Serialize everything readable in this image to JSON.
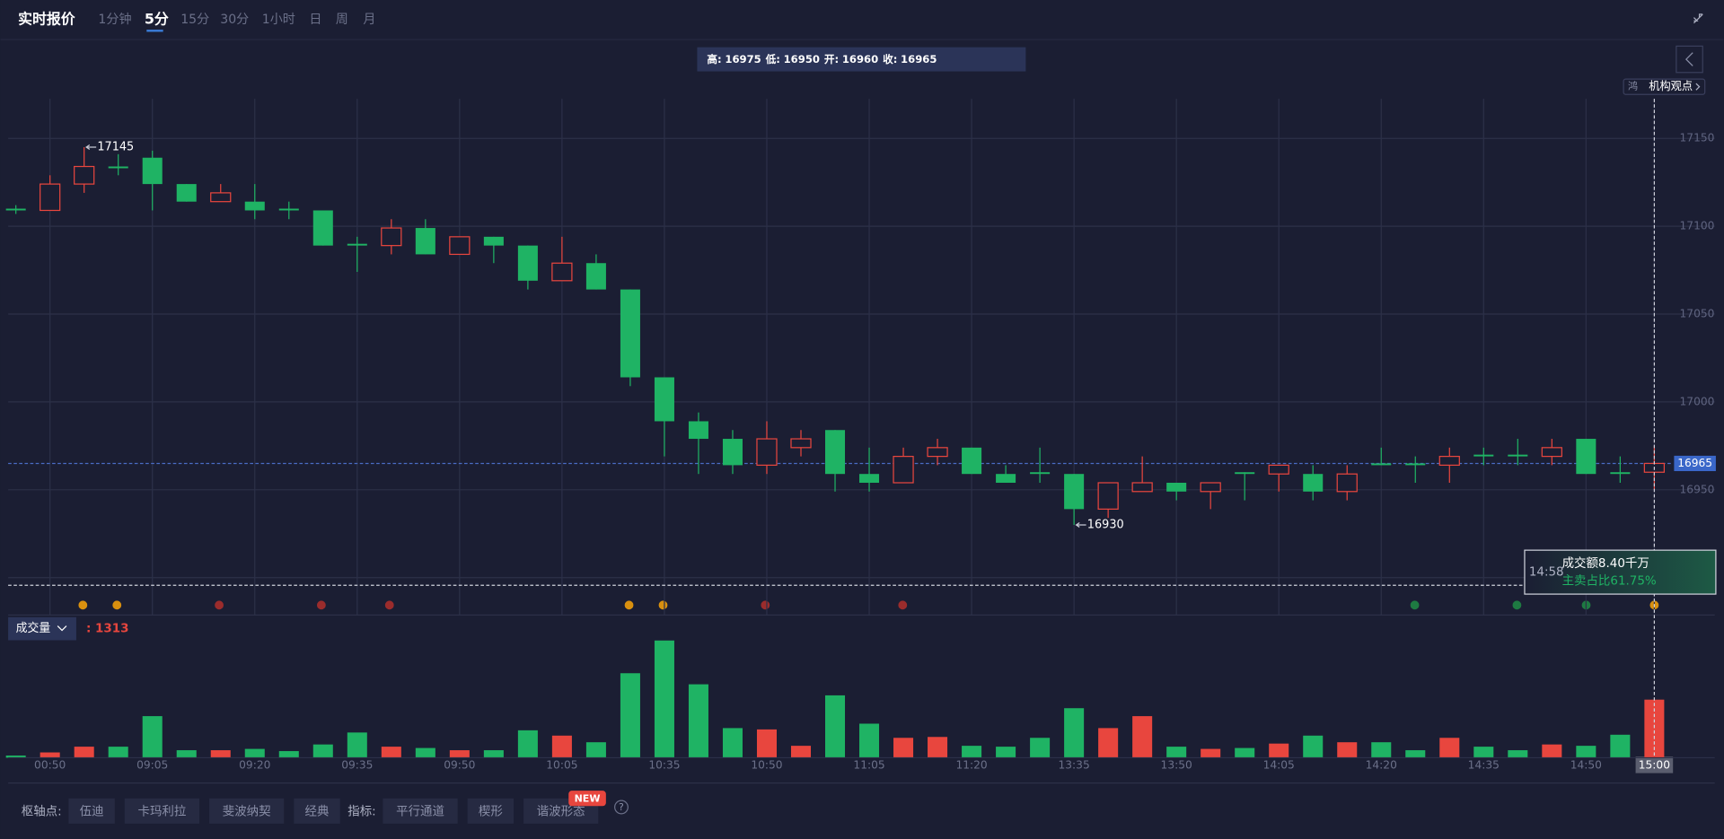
{
  "toolbar": {
    "title": "实时报价",
    "tabs": [
      "1分钟",
      "5分",
      "15分",
      "30分",
      "1小时",
      "日",
      "周",
      "月"
    ],
    "active_tab": 1
  },
  "ohlc_header": {
    "labels": [
      "高:",
      "低:",
      "开:",
      "收:"
    ]
  },
  "badge": {
    "icon": "鸿",
    "label": "机构观点"
  },
  "tooltip": {
    "time": "14:58",
    "amount": "成交额8.40千万",
    "ratio": "主卖占比61.75%"
  },
  "footer": {
    "pivot_label": "枢轴点:",
    "pivots": [
      "伍迪",
      "卡玛利拉",
      "斐波纳契",
      "经典"
    ],
    "indicator_label": "指标:",
    "indicators": [
      "平行通道",
      "楔形",
      "谐波形态"
    ],
    "new_badge": "NEW",
    "help": "?"
  },
  "chart_data": [
    {
      "type": "candlestick",
      "categories": [
        null,
        "00:50",
        null,
        null,
        "09:05",
        null,
        null,
        "09:20",
        null,
        null,
        "09:35",
        null,
        null,
        "09:50",
        null,
        null,
        "10:05",
        null,
        null,
        "10:35",
        null,
        null,
        "10:50",
        null,
        null,
        "11:05",
        null,
        null,
        "11:20",
        null,
        null,
        "13:35",
        null,
        null,
        "13:50",
        null,
        null,
        "14:05",
        null,
        null,
        "14:20",
        null,
        null,
        "14:35",
        null,
        null,
        "14:50",
        null,
        "15:00"
      ],
      "series": [
        {
          "name": "open",
          "values": [
            17110,
            17109,
            17124,
            17134,
            17139,
            17124,
            17114,
            17114,
            17110,
            17109,
            17090,
            17089,
            17099,
            17084,
            17094,
            17089,
            17069,
            17079,
            17064,
            17014,
            16989,
            16979,
            16964,
            16974,
            16984,
            16959,
            16954,
            16969,
            16974,
            16959,
            16960,
            16959,
            16939,
            16949,
            16954,
            16949,
            16960,
            16959,
            16959,
            16949,
            16965,
            16965,
            16964,
            16970,
            16970,
            16969,
            16979,
            16960,
            16960
          ]
        },
        {
          "name": "high",
          "values": [
            17112,
            17129,
            17145,
            17141,
            17143,
            17124,
            17124,
            17124,
            17114,
            17109,
            17094,
            17104,
            17104,
            17094,
            17094,
            17089,
            17094,
            17084,
            17064,
            17014,
            16994,
            16984,
            16989,
            16984,
            16984,
            16974,
            16974,
            16979,
            16974,
            16964,
            16974,
            16959,
            16954,
            16969,
            16954,
            16954,
            16960,
            16964,
            16964,
            16964,
            16974,
            16969,
            16974,
            16974,
            16979,
            16979,
            16979,
            16969,
            16975
          ]
        },
        {
          "name": "low",
          "values": [
            17107,
            17109,
            17119,
            17129,
            17109,
            17114,
            17114,
            17104,
            17104,
            17089,
            17074,
            17084,
            17084,
            17084,
            17079,
            17064,
            17069,
            17064,
            17009,
            16969,
            16959,
            16959,
            16959,
            16969,
            16949,
            16949,
            16954,
            16964,
            16959,
            16954,
            16954,
            16930,
            16934,
            16949,
            16944,
            16939,
            16944,
            16949,
            16944,
            16944,
            16964,
            16954,
            16954,
            16964,
            16964,
            16964,
            16959,
            16954,
            16950
          ]
        },
        {
          "name": "close",
          "values": [
            17109,
            17124,
            17134,
            17133,
            17124,
            17114,
            17119,
            17109,
            17109,
            17089,
            17089,
            17099,
            17084,
            17094,
            17089,
            17069,
            17079,
            17064,
            17014,
            16989,
            16979,
            16964,
            16979,
            16979,
            16959,
            16954,
            16969,
            16974,
            16959,
            16954,
            16959,
            16939,
            16954,
            16954,
            16949,
            16954,
            16959,
            16964,
            16949,
            16959,
            16964,
            16964,
            16969,
            16969,
            16969,
            16974,
            16959,
            16959,
            16965
          ]
        }
      ],
      "up_color": "#e8463e",
      "down_color": "#1fb364",
      "ylim": [
        16897.5,
        17172.5
      ],
      "yticks": [
        16900,
        16950,
        17000,
        17050,
        17100,
        17150
      ],
      "grid": true
    },
    {
      "type": "bar",
      "title": "成交量",
      "readout": ": 1313",
      "values": [
        50,
        120,
        250,
        250,
        940,
        170,
        170,
        200,
        150,
        300,
        570,
        250,
        220,
        170,
        170,
        620,
        500,
        350,
        1910,
        2650,
        1660,
        670,
        640,
        270,
        1410,
        770,
        450,
        470,
        270,
        250,
        450,
        1120,
        670,
        940,
        250,
        200,
        220,
        320,
        500,
        350,
        350,
        170,
        450,
        250,
        170,
        300,
        270,
        520,
        1313
      ],
      "ylim": [
        0,
        2780
      ]
    }
  ]
}
